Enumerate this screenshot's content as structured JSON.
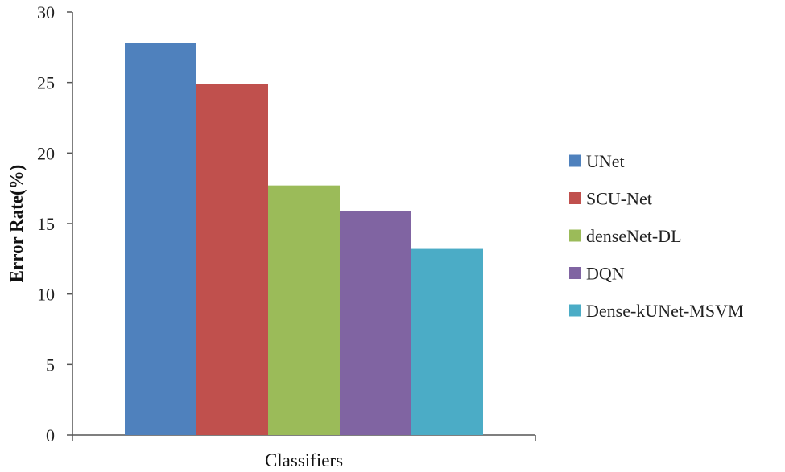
{
  "chart_data": {
    "type": "bar",
    "title": "",
    "xlabel": "Classifiers",
    "ylabel": "Error Rate(%)",
    "ylim": [
      0,
      30
    ],
    "yticks": [
      "0",
      "5",
      "10",
      "15",
      "20",
      "25",
      "30"
    ],
    "categories": [
      "Classifiers"
    ],
    "series": [
      {
        "name": "UNet",
        "values": [
          27.8
        ],
        "color": "#4F81BD"
      },
      {
        "name": "SCU-Net",
        "values": [
          24.9
        ],
        "color": "#C0504D"
      },
      {
        "name": "denseNet-DL",
        "values": [
          17.7
        ],
        "color": "#9BBB59"
      },
      {
        "name": "DQN",
        "values": [
          15.9
        ],
        "color": "#8064A2"
      },
      {
        "name": "Dense-kUNet-MSVM",
        "values": [
          13.2
        ],
        "color": "#4BACC6"
      }
    ],
    "grid": false,
    "legend_position": "right"
  }
}
